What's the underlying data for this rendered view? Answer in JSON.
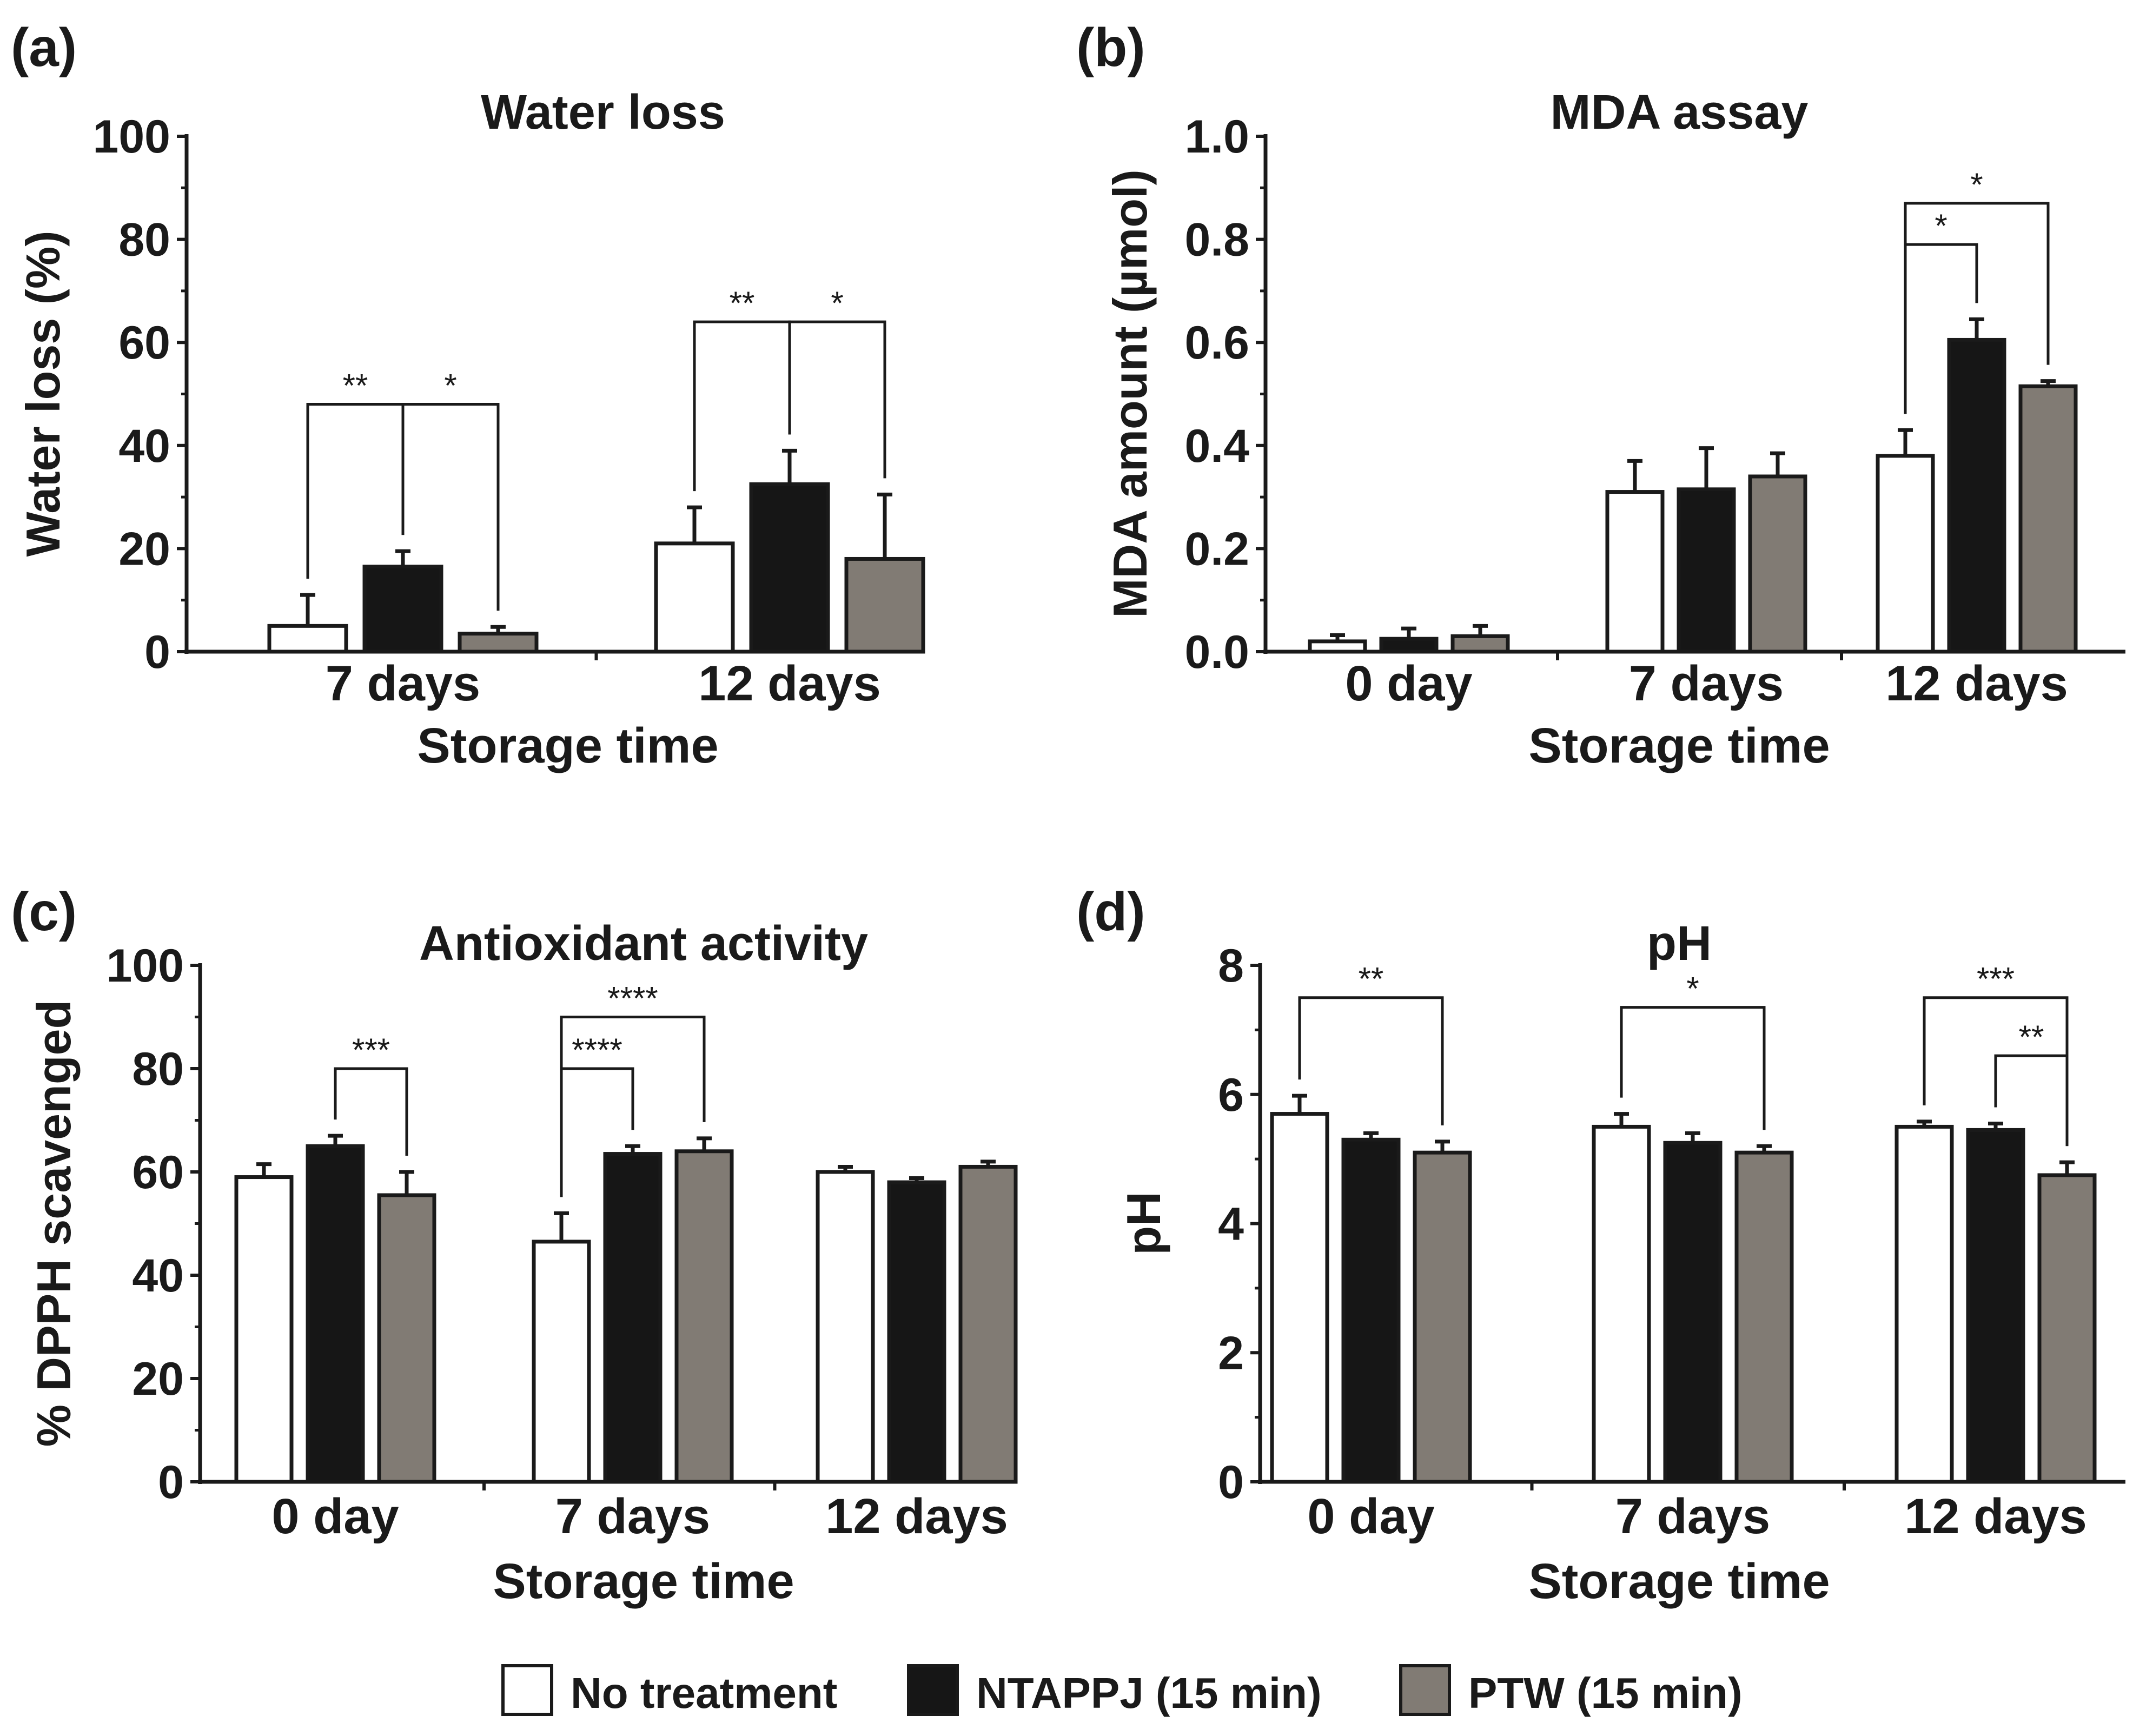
{
  "legend": [
    {
      "label": "No treatment",
      "color": "#ffffff"
    },
    {
      "label": "NTAPPJ (15 min)",
      "color": "#161616"
    },
    {
      "label": "PTW (15 min)",
      "color": "#817b74"
    }
  ],
  "chart_data": [
    {
      "panel": "(a)",
      "type": "bar",
      "title": "Water loss",
      "xlabel": "Storage time",
      "ylabel": "Water loss (%)",
      "ylim": [
        0,
        100
      ],
      "yticks": [
        0,
        20,
        40,
        60,
        80,
        100
      ],
      "ytick_labels": [
        "0",
        "20",
        "40",
        "60",
        "80",
        "100"
      ],
      "categories": [
        "7 days",
        "12 days"
      ],
      "series": [
        {
          "name": "No treatment",
          "values": [
            5,
            21
          ],
          "errors": [
            6,
            7
          ]
        },
        {
          "name": "NTAPPJ (15 min)",
          "values": [
            16.5,
            32.5
          ],
          "errors": [
            3,
            6.5
          ]
        },
        {
          "name": "PTW (15 min)",
          "values": [
            3.5,
            18
          ],
          "errors": [
            1.3,
            12.5
          ]
        }
      ],
      "significance": [
        {
          "category": 0,
          "from": 0,
          "to": 1,
          "label": "**",
          "y": 48
        },
        {
          "category": 0,
          "from": 1,
          "to": 2,
          "label": "*",
          "y": 48
        },
        {
          "category": 1,
          "from": 0,
          "to": 1,
          "label": "**",
          "y": 64
        },
        {
          "category": 1,
          "from": 1,
          "to": 2,
          "label": "*",
          "y": 64
        }
      ]
    },
    {
      "panel": "(b)",
      "type": "bar",
      "title": "MDA assay",
      "xlabel": "Storage time",
      "ylabel": "MDA amount (µmol)",
      "ylim": [
        0,
        1.0
      ],
      "yticks": [
        0,
        0.2,
        0.4,
        0.6,
        0.8,
        1.0
      ],
      "ytick_labels": [
        "0.0",
        "0.2",
        "0.4",
        "0.6",
        "0.8",
        "1.0"
      ],
      "categories": [
        "0 day",
        "7 days",
        "12 days"
      ],
      "series": [
        {
          "name": "No treatment",
          "values": [
            0.02,
            0.31,
            0.38
          ],
          "errors": [
            0.012,
            0.06,
            0.05
          ]
        },
        {
          "name": "NTAPPJ (15 min)",
          "values": [
            0.025,
            0.315,
            0.605
          ],
          "errors": [
            0.02,
            0.08,
            0.04
          ]
        },
        {
          "name": "PTW (15 min)",
          "values": [
            0.03,
            0.34,
            0.515
          ],
          "errors": [
            0.02,
            0.045,
            0.01
          ]
        }
      ],
      "significance": [
        {
          "category": 2,
          "from": 0,
          "to": 1,
          "label": "*",
          "y": 0.79
        },
        {
          "category": 2,
          "from": 0,
          "to": 2,
          "label": "*",
          "y": 0.87
        }
      ]
    },
    {
      "panel": "(c)",
      "type": "bar",
      "title": "Antioxidant activity",
      "xlabel": "Storage time",
      "ylabel": "% DPPH scavenged",
      "ylim": [
        0,
        100
      ],
      "yticks": [
        0,
        20,
        40,
        60,
        80,
        100
      ],
      "ytick_labels": [
        "0",
        "20",
        "40",
        "60",
        "80",
        "100"
      ],
      "categories": [
        "0 day",
        "7 days",
        "12 days"
      ],
      "series": [
        {
          "name": "No treatment",
          "values": [
            59,
            46.5,
            60
          ],
          "errors": [
            2.5,
            5.5,
            1
          ]
        },
        {
          "name": "NTAPPJ (15 min)",
          "values": [
            65,
            63.5,
            58
          ],
          "errors": [
            2,
            1.5,
            0.8
          ]
        },
        {
          "name": "PTW (15 min)",
          "values": [
            55.5,
            64,
            61
          ],
          "errors": [
            4.5,
            2.5,
            1
          ]
        }
      ],
      "significance": [
        {
          "category": 0,
          "from": 1,
          "to": 2,
          "label": "***",
          "y": 80
        },
        {
          "category": 1,
          "from": 0,
          "to": 1,
          "label": "****",
          "y": 80
        },
        {
          "category": 1,
          "from": 0,
          "to": 2,
          "label": "****",
          "y": 90
        }
      ]
    },
    {
      "panel": "(d)",
      "type": "bar",
      "title": "pH",
      "xlabel": "Storage time",
      "ylabel": "pH",
      "ylim": [
        0,
        8
      ],
      "yticks": [
        0,
        2,
        4,
        6,
        8
      ],
      "ytick_labels": [
        "0",
        "2",
        "4",
        "6",
        "8"
      ],
      "categories": [
        "0 day",
        "7 days",
        "12 days"
      ],
      "series": [
        {
          "name": "No treatment",
          "values": [
            5.7,
            5.5,
            5.5
          ],
          "errors": [
            0.28,
            0.2,
            0.08
          ]
        },
        {
          "name": "NTAPPJ (15 min)",
          "values": [
            5.3,
            5.25,
            5.45
          ],
          "errors": [
            0.1,
            0.15,
            0.1
          ]
        },
        {
          "name": "PTW (15 min)",
          "values": [
            5.1,
            5.1,
            4.75
          ],
          "errors": [
            0.17,
            0.1,
            0.2
          ]
        }
      ],
      "significance": [
        {
          "category": 0,
          "from": 0,
          "to": 2,
          "label": "**",
          "y": 7.5
        },
        {
          "category": 1,
          "from": 0,
          "to": 2,
          "label": "*",
          "y": 7.35
        },
        {
          "category": 2,
          "from": 0,
          "to": 2,
          "label": "***",
          "y": 7.5
        },
        {
          "category": 2,
          "from": 1,
          "to": 2,
          "label": "**",
          "y": 6.6
        }
      ]
    }
  ]
}
